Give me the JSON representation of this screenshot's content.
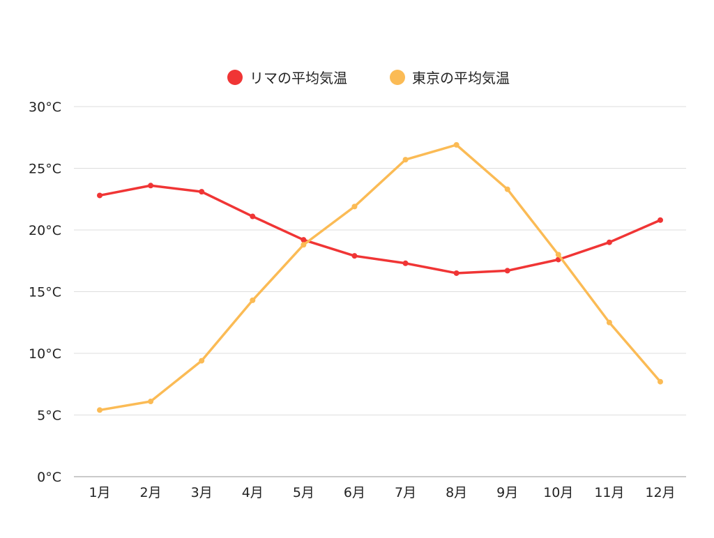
{
  "chart_data": {
    "type": "line",
    "title": "",
    "xlabel": "",
    "ylabel": "",
    "categories": [
      "1月",
      "2月",
      "3月",
      "4月",
      "5月",
      "6月",
      "7月",
      "8月",
      "9月",
      "10月",
      "11月",
      "12月"
    ],
    "ylim": [
      0,
      30
    ],
    "yticks": [
      0,
      5,
      10,
      15,
      20,
      25,
      30
    ],
    "ytick_labels": [
      "0°C",
      "5°C",
      "10°C",
      "15°C",
      "20°C",
      "25°C",
      "30°C"
    ],
    "grid": true,
    "legend_position": "top-center",
    "series": [
      {
        "name": "リマの平均気温",
        "color": "#f03535",
        "values": [
          22.8,
          23.6,
          23.1,
          21.1,
          19.2,
          17.9,
          17.3,
          16.5,
          16.7,
          17.6,
          19.0,
          20.8
        ]
      },
      {
        "name": "東京の平均気温",
        "color": "#fbbb55",
        "values": [
          5.4,
          6.1,
          9.4,
          14.3,
          18.8,
          21.9,
          25.7,
          26.9,
          23.3,
          18.0,
          12.5,
          7.7
        ]
      }
    ]
  }
}
